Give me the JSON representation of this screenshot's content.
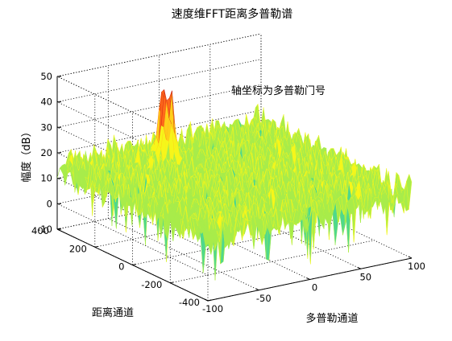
{
  "figure": {
    "title": "速度维FFT距离多普勒谱",
    "annotation": "轴坐标为多普勒门号"
  },
  "chart_data": {
    "type": "surface",
    "title": "速度维FFT距离多普勒谱",
    "xlabel": "多普勒通道",
    "ylabel": "距离通道",
    "zlabel": "幅度（dB）",
    "xlim": [
      -100,
      100
    ],
    "ylim": [
      -400,
      400
    ],
    "zlim": [
      -10,
      50
    ],
    "xticks": [
      "-100",
      "-50",
      "0",
      "50",
      "100"
    ],
    "yticks": [
      "-400",
      "-200",
      "0",
      "200",
      "400"
    ],
    "zticks": [
      "-10",
      "0",
      "10",
      "20",
      "30",
      "40",
      "50"
    ],
    "grid": true,
    "colormap": [
      "#1fbfa8",
      "#4fd88c",
      "#a8ec4a",
      "#f6f61a",
      "#ffcf1a",
      "#ff6a1a",
      "#c81e14"
    ],
    "noise_floor_db": 15,
    "noise_range_db": [
      -5,
      30
    ],
    "peak": {
      "doppler": -20,
      "range": 250,
      "amplitude_db": 45
    },
    "annotation": "轴坐标为多普勒门号"
  }
}
